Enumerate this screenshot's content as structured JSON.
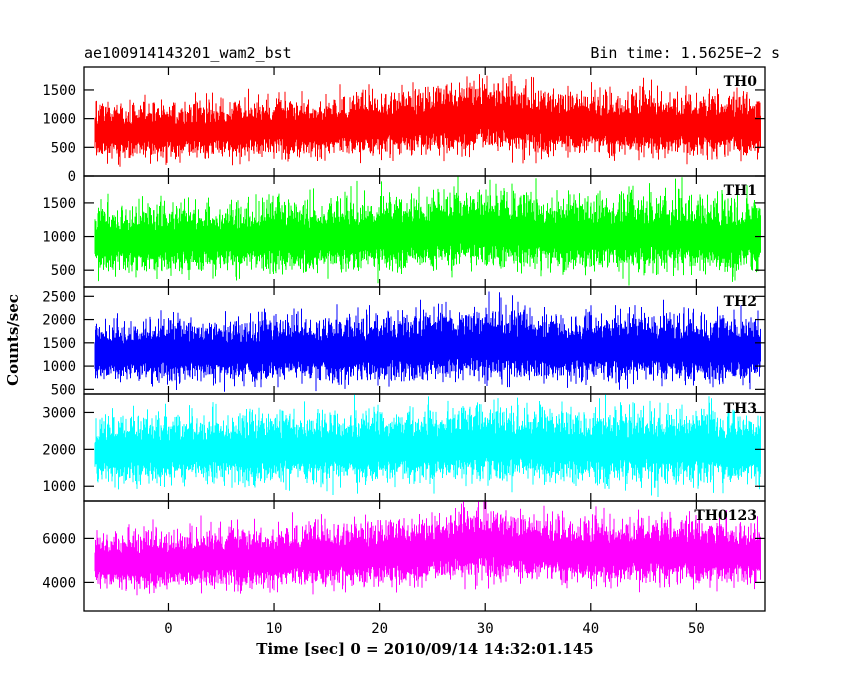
{
  "header": {
    "title": "ae100914143201_wam2_bst",
    "bin_time": "Bin time: 1.5625E−2 s"
  },
  "chart_data": {
    "type": "line",
    "xlabel": "Time [sec] 0 = 2010/09/14 14:32:01.145",
    "ylabel": "Counts/sec",
    "xlim": [
      -8,
      56.5
    ],
    "x_ticks": [
      "0",
      "10",
      "20",
      "30",
      "40",
      "50"
    ],
    "x_tick_values": [
      0,
      10,
      20,
      30,
      40,
      50
    ],
    "grid": false,
    "series": [
      {
        "name": "TH0",
        "color": "#ff0000",
        "ylim": [
          0,
          1900
        ],
        "tick_values": [
          0,
          500,
          1000,
          1500
        ],
        "tick_labels": [
          "0",
          "500",
          "1000",
          "1500"
        ],
        "x": [
          -7,
          -3,
          0,
          5,
          10,
          15,
          20,
          25,
          28,
          30,
          33,
          37,
          42,
          45,
          50,
          56
        ],
        "mean": [
          760,
          770,
          780,
          790,
          820,
          840,
          880,
          950,
          1020,
          1050,
          970,
          910,
          880,
          920,
          870,
          850
        ],
        "spread": [
          330,
          330,
          340,
          340,
          350,
          360,
          380,
          400,
          440,
          460,
          420,
          400,
          390,
          400,
          380,
          370
        ]
      },
      {
        "name": "TH1",
        "color": "#00ff00",
        "ylim": [
          250,
          1900
        ],
        "tick_values": [
          500,
          1000,
          1500
        ],
        "tick_labels": [
          "500",
          "1000",
          "1500"
        ],
        "x": [
          -7,
          -3,
          0,
          5,
          10,
          15,
          20,
          25,
          28,
          30,
          33,
          37,
          42,
          45,
          50,
          56
        ],
        "mean": [
          940,
          950,
          960,
          970,
          990,
          1000,
          1020,
          1060,
          1100,
          1120,
          1070,
          1040,
          1020,
          1040,
          1010,
          990
        ],
        "spread": [
          360,
          360,
          365,
          370,
          375,
          380,
          390,
          405,
          420,
          430,
          410,
          400,
          390,
          400,
          385,
          380
        ]
      },
      {
        "name": "TH2",
        "color": "#0000ff",
        "ylim": [
          400,
          2700
        ],
        "tick_values": [
          500,
          1000,
          1500,
          2000,
          2500
        ],
        "tick_labels": [
          "500",
          "1000",
          "1500",
          "2000",
          "2500"
        ],
        "x": [
          -7,
          -3,
          0,
          5,
          10,
          15,
          20,
          25,
          28,
          30,
          33,
          37,
          42,
          45,
          50,
          56
        ],
        "mean": [
          1280,
          1290,
          1300,
          1310,
          1330,
          1340,
          1360,
          1400,
          1450,
          1480,
          1420,
          1390,
          1370,
          1390,
          1360,
          1340
        ],
        "spread": [
          470,
          470,
          480,
          480,
          490,
          495,
          505,
          525,
          550,
          560,
          535,
          520,
          510,
          520,
          505,
          500
        ]
      },
      {
        "name": "TH3",
        "color": "#00ffff",
        "ylim": [
          600,
          3500
        ],
        "tick_values": [
          1000,
          2000,
          3000
        ],
        "tick_labels": [
          "1000",
          "2000",
          "3000"
        ],
        "x": [
          -7,
          -3,
          0,
          5,
          10,
          15,
          20,
          25,
          28,
          30,
          33,
          37,
          42,
          45,
          50,
          56
        ],
        "mean": [
          1950,
          1960,
          1970,
          1980,
          2000,
          2010,
          2030,
          2070,
          2120,
          2150,
          2090,
          2060,
          2040,
          2060,
          2030,
          2010
        ],
        "spread": [
          660,
          660,
          665,
          670,
          680,
          685,
          695,
          715,
          740,
          750,
          725,
          710,
          700,
          710,
          695,
          690
        ]
      },
      {
        "name": "TH0123",
        "color": "#ff00ff",
        "ylim": [
          2700,
          7700
        ],
        "tick_values": [
          4000,
          6000
        ],
        "tick_labels": [
          "4000",
          "6000"
        ],
        "x": [
          -7,
          -3,
          0,
          5,
          10,
          15,
          20,
          25,
          28,
          30,
          33,
          37,
          42,
          45,
          50,
          56
        ],
        "mean": [
          4950,
          4980,
          5010,
          5050,
          5130,
          5180,
          5270,
          5460,
          5650,
          5750,
          5540,
          5420,
          5360,
          5420,
          5330,
          5270
        ],
        "spread": [
          950,
          950,
          960,
          970,
          990,
          1000,
          1020,
          1070,
          1120,
          1150,
          1090,
          1060,
          1040,
          1060,
          1030,
          1020
        ]
      }
    ]
  }
}
